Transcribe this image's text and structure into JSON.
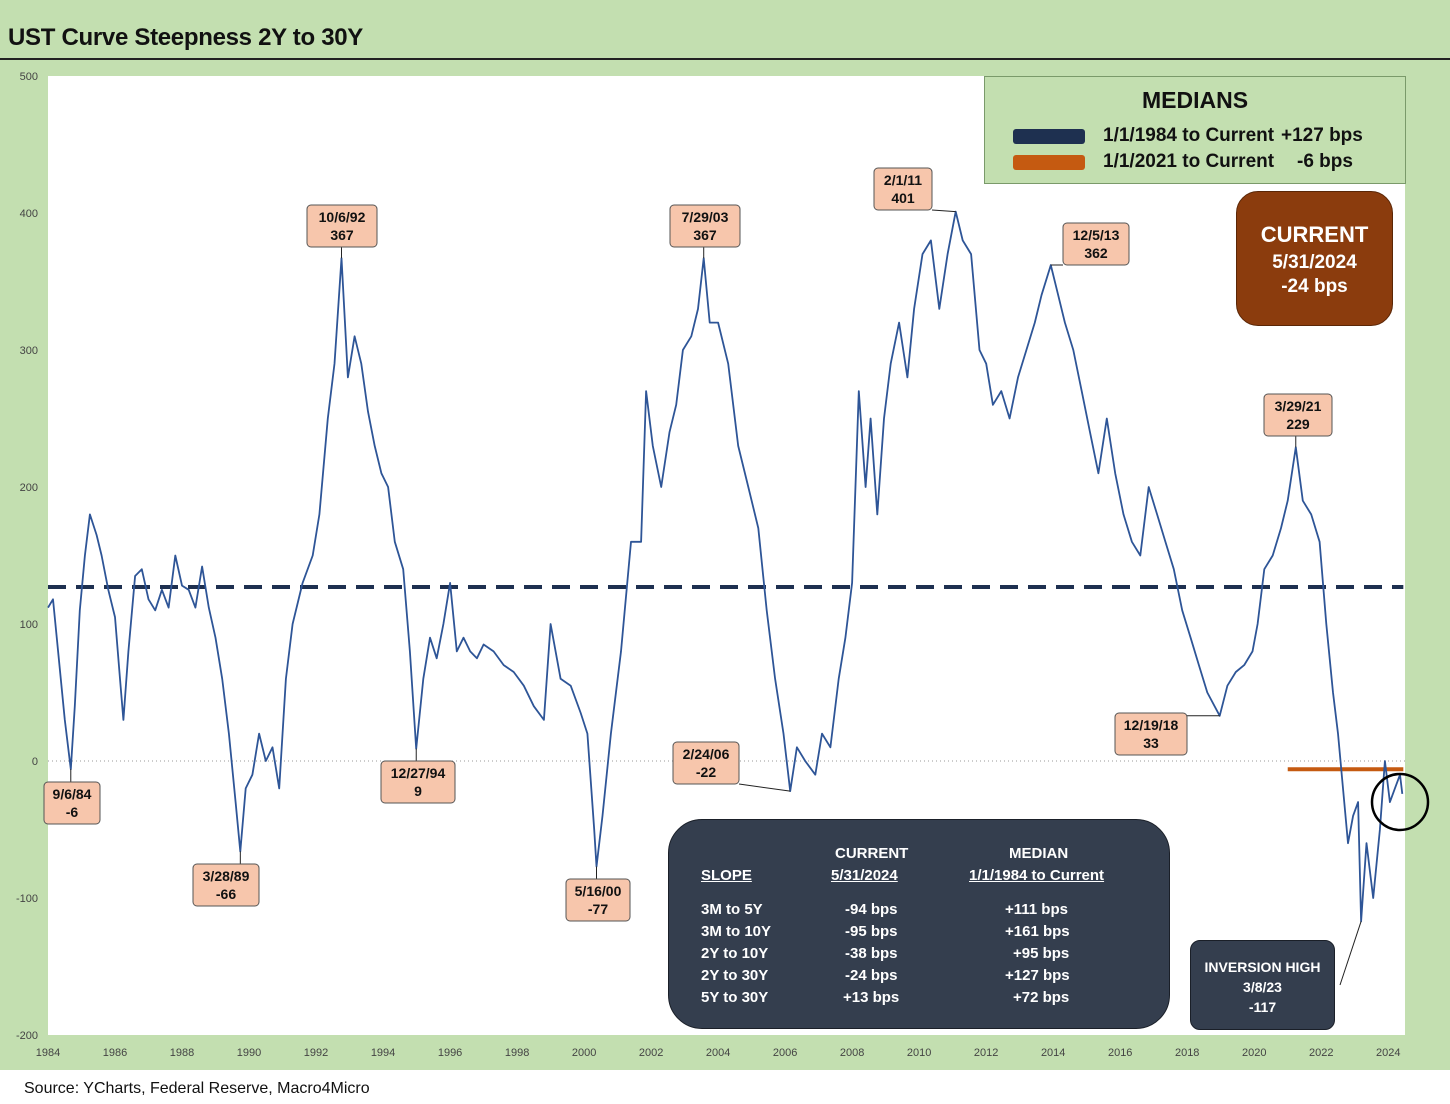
{
  "header": {
    "title": "UST Curve Steepness 2Y to 30Y"
  },
  "footer": {
    "source": "Source: YCharts, Federal Reserve, Macro4Micro"
  },
  "chart_data": {
    "type": "line",
    "title": "UST Curve Steepness 2Y to 30Y",
    "xlabel": "",
    "ylabel": "",
    "xlim": [
      1984,
      2024.5
    ],
    "ylim": [
      -200,
      500
    ],
    "y_ticks": [
      500,
      400,
      300,
      200,
      100,
      0,
      -100,
      -200
    ],
    "x_ticks": [
      1984,
      1986,
      1988,
      1990,
      1992,
      1994,
      1996,
      1998,
      2000,
      2002,
      2004,
      2006,
      2008,
      2010,
      2012,
      2014,
      2016,
      2018,
      2020,
      2022,
      2024
    ],
    "grid": false,
    "units": "bps",
    "colors": {
      "series": "#2e5597",
      "median_full": "#1e3050",
      "median_recent": "#c55a11",
      "annotation_fill": "#f7c6ac",
      "current_box": "#8b3c0d",
      "table_box": "#343e4e",
      "plot_bg": "#ffffff",
      "page_bg": "#c3dfb0"
    },
    "series": [
      {
        "name": "2Y to 30Y",
        "points": [
          [
            1984.0,
            112
          ],
          [
            1984.15,
            118
          ],
          [
            1984.3,
            80
          ],
          [
            1984.5,
            30
          ],
          [
            1984.68,
            -6
          ],
          [
            1984.8,
            40
          ],
          [
            1984.95,
            110
          ],
          [
            1985.1,
            150
          ],
          [
            1985.25,
            180
          ],
          [
            1985.45,
            165
          ],
          [
            1985.6,
            150
          ],
          [
            1985.8,
            125
          ],
          [
            1986.0,
            105
          ],
          [
            1986.15,
            60
          ],
          [
            1986.25,
            30
          ],
          [
            1986.4,
            80
          ],
          [
            1986.6,
            135
          ],
          [
            1986.8,
            140
          ],
          [
            1987.0,
            118
          ],
          [
            1987.2,
            110
          ],
          [
            1987.4,
            125
          ],
          [
            1987.6,
            112
          ],
          [
            1987.8,
            150
          ],
          [
            1988.0,
            128
          ],
          [
            1988.2,
            125
          ],
          [
            1988.4,
            112
          ],
          [
            1988.6,
            142
          ],
          [
            1988.8,
            112
          ],
          [
            1989.0,
            90
          ],
          [
            1989.2,
            60
          ],
          [
            1989.4,
            20
          ],
          [
            1989.6,
            -30
          ],
          [
            1989.74,
            -66
          ],
          [
            1989.9,
            -20
          ],
          [
            1990.1,
            -10
          ],
          [
            1990.3,
            20
          ],
          [
            1990.5,
            0
          ],
          [
            1990.7,
            10
          ],
          [
            1990.9,
            -20
          ],
          [
            1991.1,
            60
          ],
          [
            1991.3,
            100
          ],
          [
            1991.6,
            130
          ],
          [
            1991.9,
            150
          ],
          [
            1992.1,
            180
          ],
          [
            1992.35,
            250
          ],
          [
            1992.55,
            290
          ],
          [
            1992.76,
            367
          ],
          [
            1992.95,
            280
          ],
          [
            1993.15,
            310
          ],
          [
            1993.35,
            290
          ],
          [
            1993.55,
            255
          ],
          [
            1993.75,
            230
          ],
          [
            1993.95,
            210
          ],
          [
            1994.15,
            200
          ],
          [
            1994.35,
            160
          ],
          [
            1994.6,
            140
          ],
          [
            1994.8,
            80
          ],
          [
            1994.99,
            9
          ],
          [
            1995.2,
            60
          ],
          [
            1995.4,
            90
          ],
          [
            1995.6,
            75
          ],
          [
            1995.8,
            100
          ],
          [
            1996.0,
            130
          ],
          [
            1996.2,
            80
          ],
          [
            1996.4,
            90
          ],
          [
            1996.6,
            80
          ],
          [
            1996.8,
            75
          ],
          [
            1997.0,
            85
          ],
          [
            1997.3,
            80
          ],
          [
            1997.6,
            70
          ],
          [
            1997.9,
            65
          ],
          [
            1998.2,
            55
          ],
          [
            1998.5,
            40
          ],
          [
            1998.8,
            30
          ],
          [
            1999.0,
            100
          ],
          [
            1999.3,
            60
          ],
          [
            1999.6,
            55
          ],
          [
            1999.9,
            35
          ],
          [
            2000.1,
            20
          ],
          [
            2000.3,
            -50
          ],
          [
            2000.37,
            -77
          ],
          [
            2000.55,
            -40
          ],
          [
            2000.8,
            20
          ],
          [
            2001.1,
            80
          ],
          [
            2001.4,
            160
          ],
          [
            2001.7,
            160
          ],
          [
            2001.85,
            270
          ],
          [
            2002.05,
            230
          ],
          [
            2002.3,
            200
          ],
          [
            2002.55,
            240
          ],
          [
            2002.75,
            260
          ],
          [
            2002.95,
            300
          ],
          [
            2003.2,
            310
          ],
          [
            2003.4,
            330
          ],
          [
            2003.57,
            367
          ],
          [
            2003.75,
            320
          ],
          [
            2004.0,
            320
          ],
          [
            2004.3,
            290
          ],
          [
            2004.6,
            230
          ],
          [
            2004.9,
            200
          ],
          [
            2005.2,
            170
          ],
          [
            2005.45,
            110
          ],
          [
            2005.7,
            60
          ],
          [
            2005.95,
            20
          ],
          [
            2006.15,
            -22
          ],
          [
            2006.35,
            10
          ],
          [
            2006.6,
            0
          ],
          [
            2006.9,
            -10
          ],
          [
            2007.1,
            20
          ],
          [
            2007.35,
            10
          ],
          [
            2007.6,
            60
          ],
          [
            2007.8,
            90
          ],
          [
            2008.0,
            130
          ],
          [
            2008.2,
            270
          ],
          [
            2008.4,
            200
          ],
          [
            2008.55,
            250
          ],
          [
            2008.75,
            180
          ],
          [
            2008.95,
            250
          ],
          [
            2009.15,
            290
          ],
          [
            2009.4,
            320
          ],
          [
            2009.65,
            280
          ],
          [
            2009.85,
            330
          ],
          [
            2010.1,
            370
          ],
          [
            2010.35,
            380
          ],
          [
            2010.6,
            330
          ],
          [
            2010.85,
            370
          ],
          [
            2011.09,
            401
          ],
          [
            2011.3,
            380
          ],
          [
            2011.55,
            370
          ],
          [
            2011.8,
            300
          ],
          [
            2012.0,
            290
          ],
          [
            2012.2,
            260
          ],
          [
            2012.45,
            270
          ],
          [
            2012.7,
            250
          ],
          [
            2012.95,
            280
          ],
          [
            2013.2,
            300
          ],
          [
            2013.45,
            320
          ],
          [
            2013.65,
            340
          ],
          [
            2013.93,
            362
          ],
          [
            2014.15,
            340
          ],
          [
            2014.35,
            320
          ],
          [
            2014.6,
            300
          ],
          [
            2014.85,
            270
          ],
          [
            2015.1,
            240
          ],
          [
            2015.35,
            210
          ],
          [
            2015.6,
            250
          ],
          [
            2015.85,
            210
          ],
          [
            2016.1,
            180
          ],
          [
            2016.35,
            160
          ],
          [
            2016.6,
            150
          ],
          [
            2016.85,
            200
          ],
          [
            2017.1,
            180
          ],
          [
            2017.35,
            160
          ],
          [
            2017.6,
            140
          ],
          [
            2017.85,
            110
          ],
          [
            2018.1,
            90
          ],
          [
            2018.35,
            70
          ],
          [
            2018.6,
            50
          ],
          [
            2018.97,
            33
          ],
          [
            2019.2,
            55
          ],
          [
            2019.45,
            65
          ],
          [
            2019.7,
            70
          ],
          [
            2019.95,
            80
          ],
          [
            2020.1,
            100
          ],
          [
            2020.3,
            140
          ],
          [
            2020.55,
            150
          ],
          [
            2020.8,
            170
          ],
          [
            2021.0,
            190
          ],
          [
            2021.24,
            229
          ],
          [
            2021.45,
            190
          ],
          [
            2021.7,
            180
          ],
          [
            2021.95,
            160
          ],
          [
            2022.15,
            100
          ],
          [
            2022.35,
            50
          ],
          [
            2022.5,
            20
          ],
          [
            2022.65,
            -20
          ],
          [
            2022.8,
            -60
          ],
          [
            2022.95,
            -40
          ],
          [
            2023.1,
            -30
          ],
          [
            2023.19,
            -117
          ],
          [
            2023.35,
            -60
          ],
          [
            2023.55,
            -100
          ],
          [
            2023.75,
            -50
          ],
          [
            2023.9,
            0
          ],
          [
            2024.05,
            -30
          ],
          [
            2024.2,
            -20
          ],
          [
            2024.35,
            -10
          ],
          [
            2024.42,
            -24
          ]
        ]
      }
    ],
    "reference_lines": [
      {
        "name": "1/1/1984 to Current",
        "value": 127,
        "x_start": 1984,
        "x_end": 2024.45,
        "style": "dashed"
      },
      {
        "name": "1/1/2021 to Current",
        "value": -6,
        "x_start": 2021.0,
        "x_end": 2024.45,
        "style": "solid"
      }
    ],
    "annotations": [
      {
        "date": "9/6/84",
        "value_label": "-6",
        "point": [
          1984.68,
          -6
        ]
      },
      {
        "date": "3/28/89",
        "value_label": "-66",
        "point": [
          1989.74,
          -66
        ]
      },
      {
        "date": "10/6/92",
        "value_label": "367",
        "point": [
          1992.76,
          367
        ]
      },
      {
        "date": "12/27/94",
        "value_label": "9",
        "point": [
          1994.99,
          9
        ]
      },
      {
        "date": "5/16/00",
        "value_label": "-77",
        "point": [
          2000.37,
          -77
        ]
      },
      {
        "date": "7/29/03",
        "value_label": "367",
        "point": [
          2003.57,
          367
        ]
      },
      {
        "date": "2/24/06",
        "value_label": "-22",
        "point": [
          2006.15,
          -22
        ]
      },
      {
        "date": "2/1/11",
        "value_label": "401",
        "point": [
          2011.09,
          401
        ]
      },
      {
        "date": "12/5/13",
        "value_label": "362",
        "point": [
          2013.93,
          362
        ]
      },
      {
        "date": "12/19/18",
        "value_label": "33",
        "point": [
          2018.97,
          33
        ]
      },
      {
        "date": "3/29/21",
        "value_label": "229",
        "point": [
          2021.24,
          229
        ]
      }
    ],
    "medians_legend": {
      "title": "MEDIANS",
      "entries": [
        {
          "label": "1/1/1984 to Current",
          "value": "+127 bps",
          "color": "#1e3050"
        },
        {
          "label": "1/1/2021 to Current",
          "value": "-6 bps",
          "color": "#c55a11"
        }
      ]
    },
    "current_box": {
      "title": "CURRENT",
      "date": "5/31/2024",
      "value": "-24 bps"
    },
    "inversion_box": {
      "title": "INVERSION HIGH",
      "date": "3/8/23",
      "value": "-117",
      "point": [
        2023.19,
        -117
      ]
    },
    "slope_table": {
      "col_current_header": "CURRENT",
      "col_current_sub": "5/31/2024",
      "col_median_header": "MEDIAN",
      "col_median_sub": "1/1/1984 to Current",
      "row_header": "SLOPE",
      "rows": [
        {
          "slope": "3M to 5Y",
          "current": "-94 bps",
          "median": "+111 bps"
        },
        {
          "slope": "3M to 10Y",
          "current": "-95 bps",
          "median": "+161 bps"
        },
        {
          "slope": "2Y to 10Y",
          "current": "-38 bps",
          "median": "+95 bps"
        },
        {
          "slope": "2Y to 30Y",
          "current": "-24 bps",
          "median": "+127 bps"
        },
        {
          "slope": "5Y to 30Y",
          "current": "+13 bps",
          "median": "+72 bps"
        }
      ]
    }
  }
}
